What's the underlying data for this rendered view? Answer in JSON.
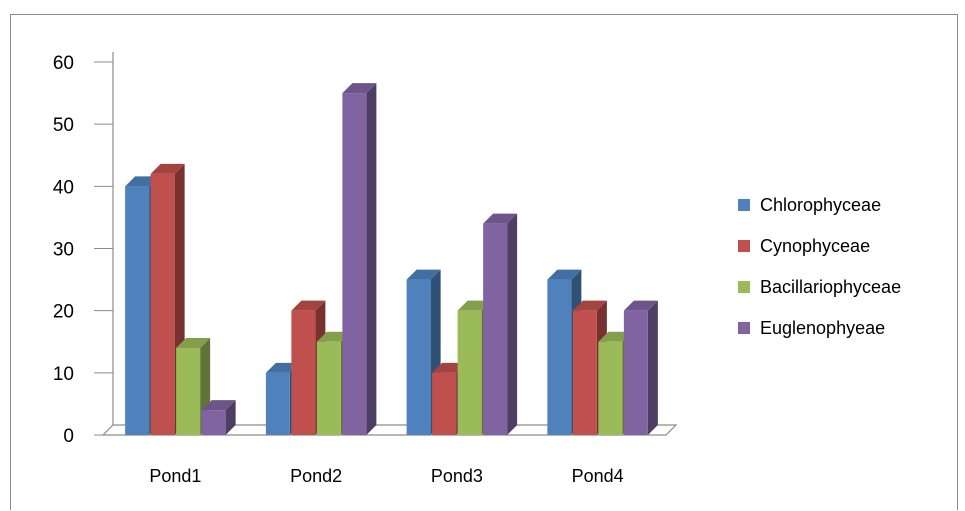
{
  "chart_data": {
    "type": "bar",
    "title": "",
    "xlabel": "",
    "ylabel": "",
    "categories": [
      "Pond1",
      "Pond2",
      "Pond3",
      "Pond4"
    ],
    "ylim": [
      0,
      60
    ],
    "yticks": [
      0,
      10,
      20,
      30,
      40,
      50,
      60
    ],
    "grid": false,
    "legend_position": "right",
    "series": [
      {
        "name": "Chlorophyceae",
        "color": "#4f81bd",
        "values": [
          40,
          10,
          25,
          25
        ]
      },
      {
        "name": "Cynophyceae",
        "color": "#c0504d",
        "values": [
          42,
          20,
          10,
          20
        ]
      },
      {
        "name": "Bacillariophyceae",
        "color": "#9bbb59",
        "values": [
          14,
          15,
          20,
          15
        ]
      },
      {
        "name": "Euglenophyeae",
        "color": "#8064a2",
        "values": [
          4,
          55,
          34,
          20
        ]
      }
    ]
  }
}
